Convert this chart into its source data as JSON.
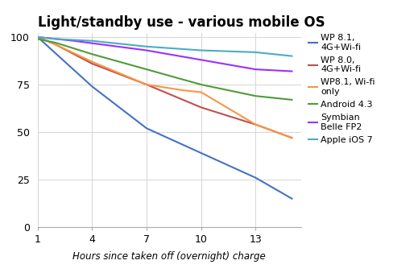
{
  "title": "Light/standby use - various mobile OS",
  "xlabel": "Hours since taken off (overnight) charge",
  "xlim": [
    1,
    15.5
  ],
  "ylim": [
    0,
    102
  ],
  "xticks": [
    1,
    4,
    7,
    10,
    13
  ],
  "yticks": [
    0,
    25,
    50,
    75,
    100
  ],
  "series": [
    {
      "label": "WP 8.1,\n4G+Wi-fi",
      "color": "#4472C4",
      "x": [
        1,
        4,
        7,
        10,
        13,
        15
      ],
      "y": [
        100,
        74,
        52,
        39,
        26,
        15
      ]
    },
    {
      "label": "WP 8.0,\n4G+Wi-fi",
      "color": "#C0504D",
      "x": [
        1,
        2,
        4,
        7,
        9,
        10,
        13,
        15
      ],
      "y": [
        100,
        96,
        86,
        75,
        67,
        63,
        54,
        47
      ]
    },
    {
      "label": "WP8.1, Wi-fi\nonly",
      "color": "#F79646",
      "x": [
        1,
        2,
        4,
        7,
        9,
        10,
        13,
        15
      ],
      "y": [
        100,
        96,
        87,
        75,
        72,
        71,
        54,
        47
      ]
    },
    {
      "label": "Android 4.3",
      "color": "#4F9C38",
      "x": [
        1,
        2,
        4,
        7,
        10,
        13,
        15
      ],
      "y": [
        99,
        97,
        91,
        83,
        75,
        69,
        67
      ]
    },
    {
      "label": "Symbian\nBelle FP2",
      "color": "#9B30FF",
      "x": [
        1,
        2,
        3,
        7,
        10,
        13,
        15
      ],
      "y": [
        100,
        99,
        98,
        93,
        88,
        83,
        82
      ]
    },
    {
      "label": "Apple iOS 7",
      "color": "#4BACC6",
      "x": [
        1,
        2,
        4,
        7,
        10,
        13,
        15
      ],
      "y": [
        100,
        99,
        98,
        95,
        93,
        92,
        90
      ]
    }
  ],
  "background_color": "#ffffff",
  "grid_color": "#d5d5d5",
  "title_fontsize": 12,
  "label_fontsize": 8.5,
  "tick_fontsize": 9,
  "legend_fontsize": 8
}
